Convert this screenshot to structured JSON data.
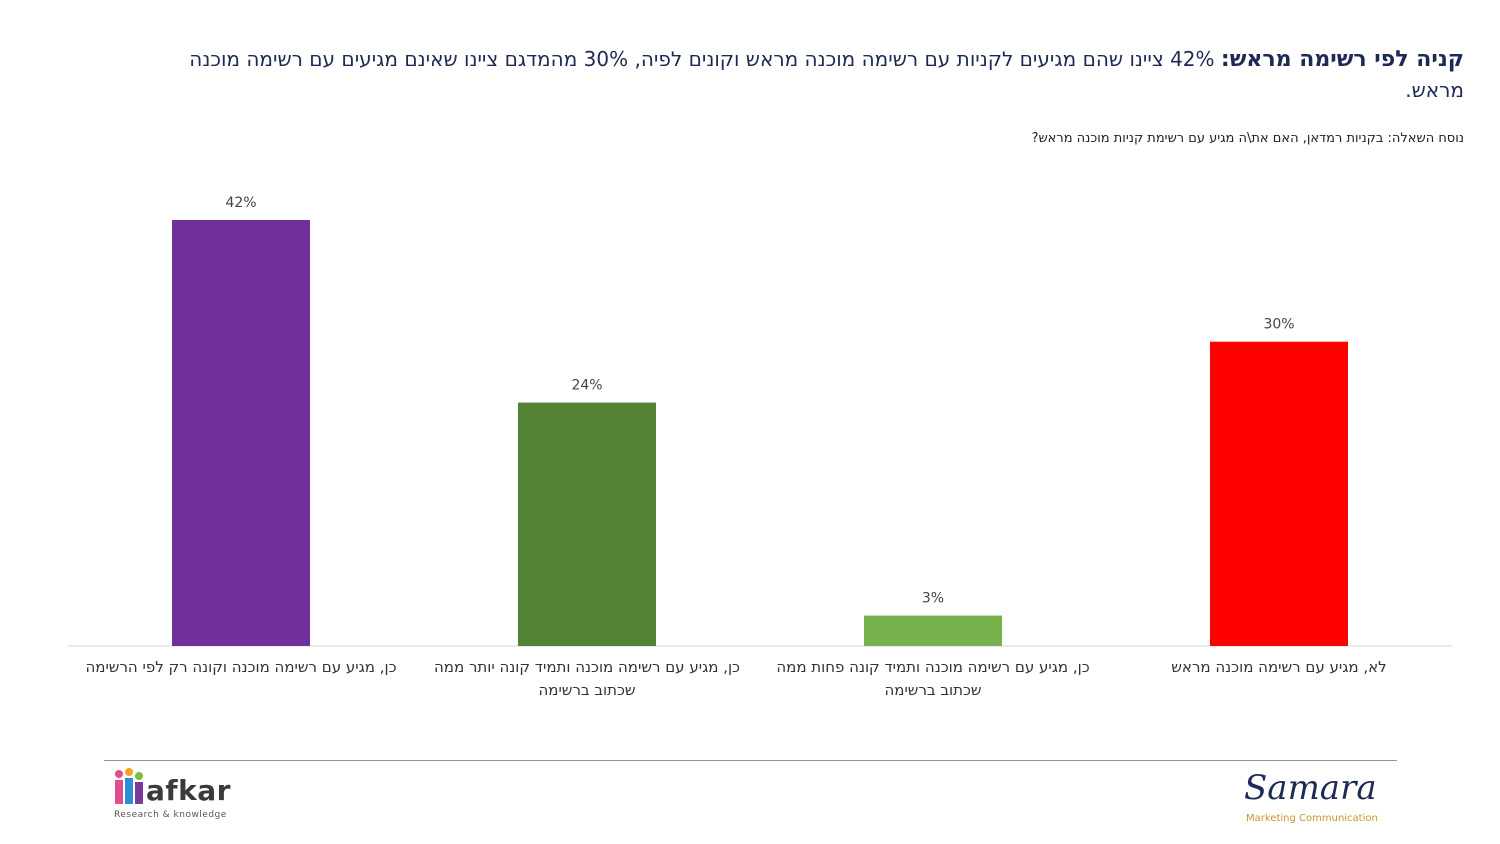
{
  "header": {
    "title_lead": "קניה לפי רשימה מראש:",
    "title_rest": " 42% ציינו שהם מגיעים לקניות עם רשימה מוכנה מראש וקונים לפיה, 30% מהמדגם ציינו שאינם מגיעים עם רשימה מוכנה מראש.",
    "question": "נוסח השאלה: בקניות רמדאן, האם את\\ה מגיע עם רשימת קניות מוכנה מראש?"
  },
  "chart_data": {
    "type": "bar",
    "categories": [
      "כן, מגיע עם רשימה מוכנה וקונה רק לפי הרשימה",
      "כן, מגיע עם רשימה מוכנה ותמיד קונה יותר ממה שכתוב ברשימה",
      "כן, מגיע עם רשימה מוכנה ותמיד קונה פחות ממה שכתוב ברשימה",
      "לא, מגיע עם רשימה מוכנה מראש"
    ],
    "values": [
      42,
      24,
      3,
      30
    ],
    "value_labels": [
      "42%",
      "24%",
      "3%",
      "30%"
    ],
    "colors": [
      "#70309a",
      "#548235",
      "#76b14b",
      "#ff0000"
    ],
    "ylim": [
      0,
      42
    ],
    "grid": false,
    "legend": "none"
  },
  "footer": {
    "afkar_name": "afkar",
    "afkar_tagline": "Research & knowledge",
    "samara_name": "Samara",
    "samara_tagline": "Marketing Communication"
  }
}
